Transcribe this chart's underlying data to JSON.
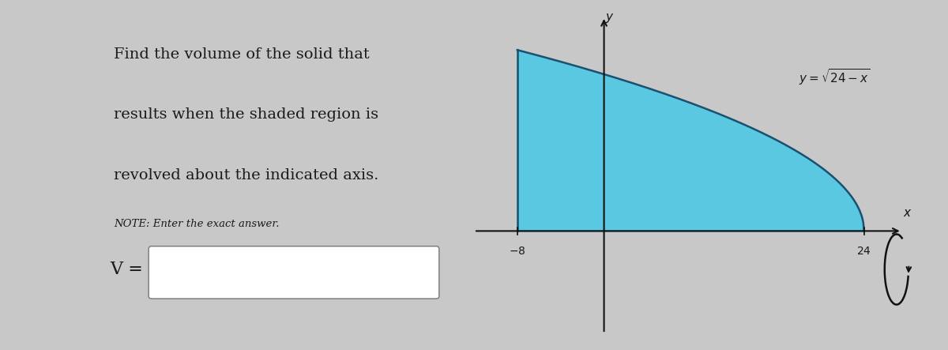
{
  "bg_color": "#c8c8c8",
  "card_color": "#e2e0db",
  "title_lines": [
    "Find the volume of the solid that",
    "results when the shaded region is",
    "revolved about the indicated axis."
  ],
  "note_text": "NOTE: Enter the exact answer.",
  "v_label": "V =",
  "x_ticks": [
    -8,
    24
  ],
  "shade_x_start": -8,
  "shade_x_end": 24,
  "shade_color": "#5ac8e0",
  "shade_alpha": 1.0,
  "axis_color": "#111111",
  "text_color": "#1a1a1a",
  "curve_color": "#1a5070",
  "plot_bg": "#e2e0db",
  "title_fontsize": 14,
  "note_fontsize": 9.5,
  "xlim": [
    -12,
    30
  ],
  "ylim": [
    -3.5,
    7
  ]
}
